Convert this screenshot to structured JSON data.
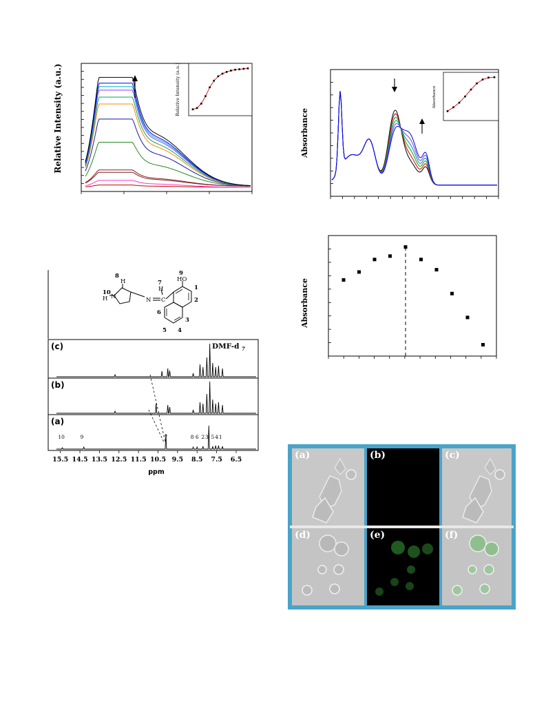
{
  "fig1": {
    "ylabel": "Relative Intensity (a.u.)",
    "inset_ylabel": "Relative Intensity (a.u.)"
  },
  "fig2": {
    "ylabel": "Absorbance",
    "inset_ylabel": "Absorbance"
  },
  "fig3": {
    "ylabel": "Absorbance"
  },
  "nmr": {
    "panels": [
      "(c)",
      "(b)",
      "(a)"
    ],
    "solvent": "DMF-d",
    "solvent_sub": "7",
    "xlabel": "ppm",
    "ticks": [
      "15.5",
      "14.5",
      "13.5",
      "12.5",
      "11.5",
      "10.5",
      "9.5",
      "8.5",
      "7.5",
      "6.5"
    ],
    "peak_labels": [
      "10",
      "9",
      "7",
      "8",
      "6",
      "2",
      "3",
      "5",
      "4",
      "1"
    ],
    "structure_labels": [
      "8",
      "10",
      "7",
      "9",
      "1",
      "2",
      "3",
      "4",
      "5",
      "6"
    ],
    "atoms": {
      "H": "H",
      "N": "N",
      "HO": "HO",
      "C": "C"
    }
  },
  "cells": {
    "labels": [
      "(a)",
      "(b)",
      "(c)",
      "(d)",
      "(e)",
      "(f)"
    ]
  },
  "chart_data": [
    {
      "type": "line",
      "title": "",
      "xlabel": "",
      "ylabel": "Relative Intensity (a.u.)",
      "series_count": 12,
      "series_colors": [
        "#cc0000",
        "#ff33cc",
        "#7b1f1f",
        "#8a1a1a",
        "#1f8a1f",
        "#1515b0",
        "#ff8800",
        "#00aa55",
        "#9933ff",
        "#00b0d0",
        "#0000ff",
        "#000000"
      ],
      "series_peak_relative": [
        0.02,
        0.06,
        0.12,
        0.14,
        0.38,
        0.58,
        0.71,
        0.77,
        0.83,
        0.86,
        0.89,
        0.94
      ],
      "annotation": "arrow up",
      "inset": {
        "type": "scatter",
        "ylabel": "Relative Intensity (a.u.)",
        "y_relative": [
          0.05,
          0.08,
          0.18,
          0.35,
          0.55,
          0.7,
          0.8,
          0.86,
          0.9,
          0.93,
          0.95,
          0.96,
          0.97,
          0.98
        ]
      }
    },
    {
      "type": "line",
      "title": "",
      "xlabel": "",
      "ylabel": "Absorbance",
      "series_count": 6,
      "series_colors": [
        "#000000",
        "#cc0000",
        "#00aa00",
        "#0088cc",
        "#7a3fbf",
        "#0000ff"
      ],
      "annotation": "arrow down at main band, arrow up at red-shifted band",
      "inset": {
        "type": "scatter",
        "ylabel": "Absorbance",
        "y_relative": [
          0.1,
          0.2,
          0.32,
          0.48,
          0.66,
          0.82,
          0.92,
          0.97,
          0.98
        ]
      }
    },
    {
      "type": "scatter",
      "title": "",
      "xlabel": "",
      "ylabel": "Absorbance",
      "x_index": [
        1,
        2,
        3,
        4,
        5,
        6,
        7,
        8,
        9,
        10
      ],
      "y_relative": [
        0.67,
        0.74,
        0.85,
        0.88,
        0.96,
        0.85,
        0.76,
        0.55,
        0.34,
        0.1
      ],
      "dashed_line_at_index": 5
    }
  ]
}
